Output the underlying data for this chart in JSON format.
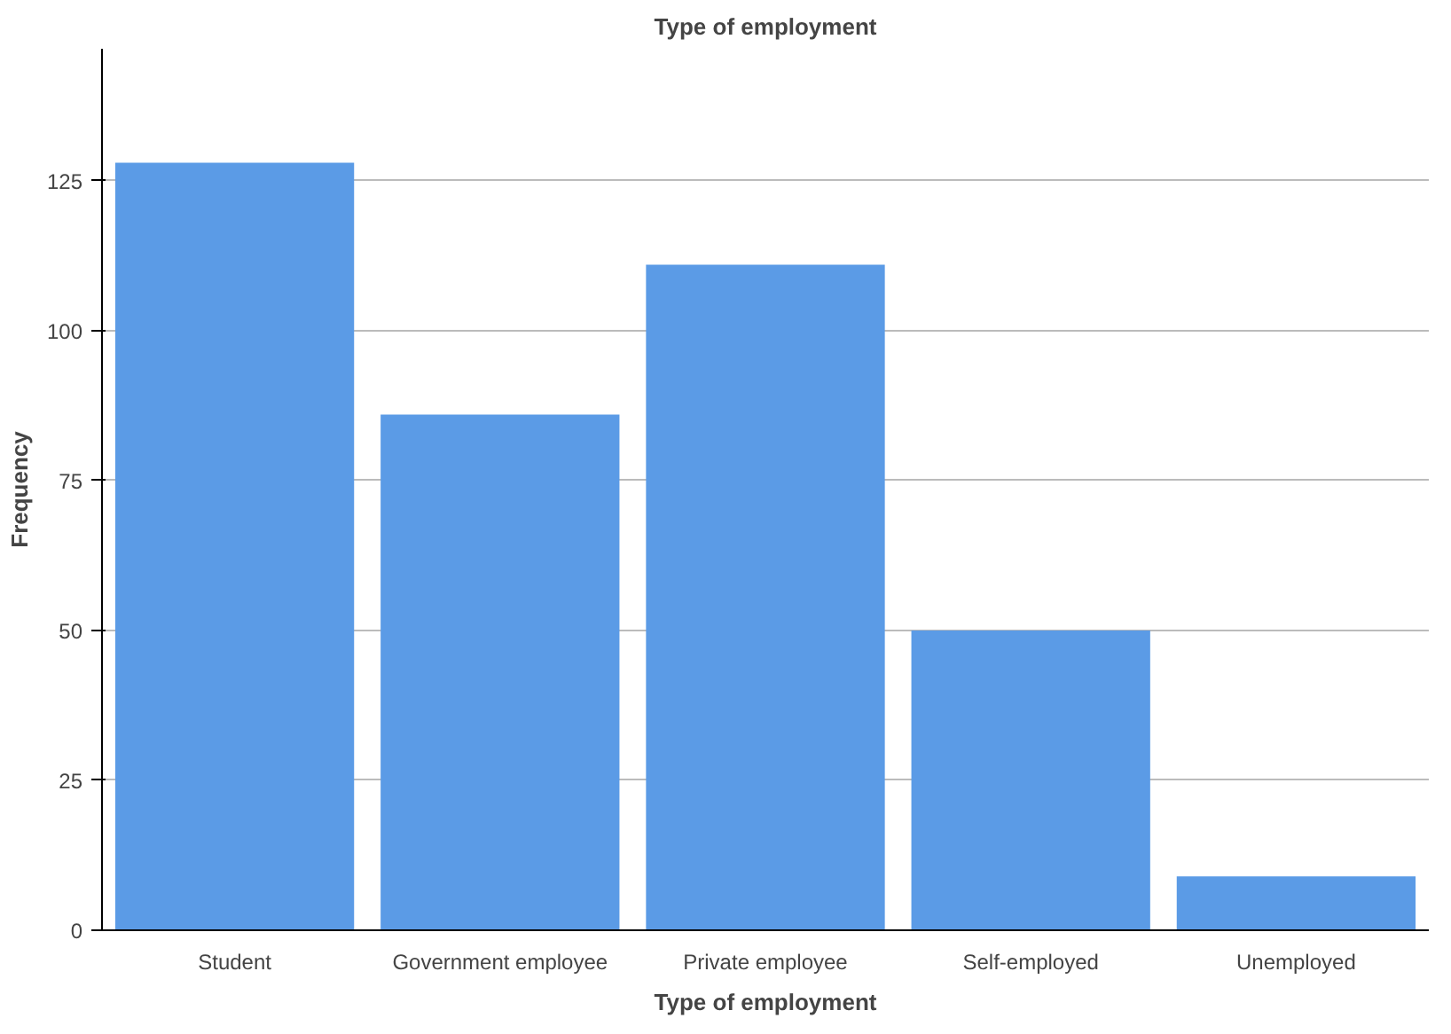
{
  "chart_data": {
    "type": "bar",
    "title": "Type of employment",
    "xlabel": "Type of employment",
    "ylabel": "Frequency",
    "categories": [
      "Student",
      "Government employee",
      "Private employee",
      "Self-employed",
      "Unemployed"
    ],
    "values": [
      128,
      86,
      111,
      50,
      9
    ],
    "color": "#5b9be6",
    "ylim": [
      0,
      147
    ],
    "yticks": [
      0,
      25,
      50,
      75,
      100,
      125
    ],
    "grid": "y"
  }
}
